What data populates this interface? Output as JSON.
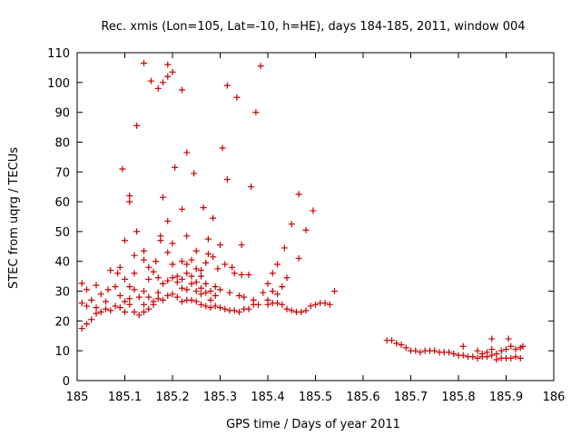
{
  "chart_data": {
    "type": "scatter",
    "title": "Rec. xmis (Lon=105, Lat=-10, h=HE), days 184-185, 2011, window 004",
    "xlabel": "GPS time / Days of year 2011",
    "ylabel": "STEC from uqrg / TECUs",
    "xlim": [
      185,
      186
    ],
    "ylim": [
      0,
      110
    ],
    "xticks": [
      "185",
      "185.1",
      "185.2",
      "185.3",
      "185.4",
      "185.5",
      "185.6",
      "185.7",
      "185.8",
      "185.9",
      "186"
    ],
    "yticks": [
      "0",
      "10",
      "20",
      "30",
      "40",
      "50",
      "60",
      "70",
      "80",
      "90",
      "100",
      "110"
    ],
    "grid": false,
    "marker": "+",
    "marker_color": "#cc0000",
    "series": [
      {
        "name": "STEC",
        "points": [
          [
            185.01,
            17.5
          ],
          [
            185.01,
            26.0
          ],
          [
            185.01,
            32.6
          ],
          [
            185.02,
            19.0
          ],
          [
            185.02,
            25.0
          ],
          [
            185.02,
            30.5
          ],
          [
            185.03,
            20.5
          ],
          [
            185.03,
            27.0
          ],
          [
            185.04,
            22.5
          ],
          [
            185.04,
            24.5
          ],
          [
            185.04,
            32.0
          ],
          [
            185.05,
            23.0
          ],
          [
            185.05,
            29.0
          ],
          [
            185.06,
            24.0
          ],
          [
            185.06,
            26.5
          ],
          [
            185.065,
            30.5
          ],
          [
            185.07,
            23.5
          ],
          [
            185.07,
            37.0
          ],
          [
            185.08,
            25.0
          ],
          [
            185.08,
            31.5
          ],
          [
            185.085,
            36.0
          ],
          [
            185.09,
            24.5
          ],
          [
            185.09,
            28.5
          ],
          [
            185.09,
            38.0
          ],
          [
            185.095,
            71.0
          ],
          [
            185.1,
            23.0
          ],
          [
            185.1,
            26.5
          ],
          [
            185.1,
            34.0
          ],
          [
            185.1,
            47.0
          ],
          [
            185.11,
            25.5
          ],
          [
            185.11,
            27.5
          ],
          [
            185.11,
            31.5
          ],
          [
            185.11,
            60.0
          ],
          [
            185.11,
            62.0
          ],
          [
            185.12,
            23.0
          ],
          [
            185.12,
            30.5
          ],
          [
            185.12,
            36.0
          ],
          [
            185.12,
            42.0
          ],
          [
            185.125,
            50.0
          ],
          [
            185.125,
            85.5
          ],
          [
            185.13,
            22.0
          ],
          [
            185.13,
            28.0
          ],
          [
            185.14,
            23.0
          ],
          [
            185.14,
            25.5
          ],
          [
            185.14,
            30.0
          ],
          [
            185.14,
            40.5
          ],
          [
            185.14,
            43.5
          ],
          [
            185.14,
            106.5
          ],
          [
            185.15,
            24.0
          ],
          [
            185.15,
            28.0
          ],
          [
            185.15,
            34.0
          ],
          [
            185.15,
            38.0
          ],
          [
            185.155,
            100.5
          ],
          [
            185.16,
            25.5
          ],
          [
            185.16,
            26.5
          ],
          [
            185.16,
            36.5
          ],
          [
            185.165,
            40.0
          ],
          [
            185.17,
            27.5
          ],
          [
            185.17,
            29.5
          ],
          [
            185.17,
            34.5
          ],
          [
            185.17,
            98.0
          ],
          [
            185.175,
            47.0
          ],
          [
            185.175,
            48.5
          ],
          [
            185.18,
            27.0
          ],
          [
            185.18,
            32.5
          ],
          [
            185.18,
            61.5
          ],
          [
            185.18,
            100.0
          ],
          [
            185.19,
            28.5
          ],
          [
            185.19,
            33.5
          ],
          [
            185.19,
            43.0
          ],
          [
            185.19,
            53.5
          ],
          [
            185.19,
            102.0
          ],
          [
            185.19,
            106.0
          ],
          [
            185.2,
            29.0
          ],
          [
            185.2,
            34.5
          ],
          [
            185.2,
            39.0
          ],
          [
            185.2,
            46.0
          ],
          [
            185.2,
            103.5
          ],
          [
            185.205,
            71.5
          ],
          [
            185.21,
            28.0
          ],
          [
            185.21,
            33.0
          ],
          [
            185.21,
            35.0
          ],
          [
            185.22,
            26.5
          ],
          [
            185.22,
            31.0
          ],
          [
            185.22,
            34.0
          ],
          [
            185.22,
            40.0
          ],
          [
            185.22,
            57.5
          ],
          [
            185.22,
            97.5
          ],
          [
            185.23,
            27.0
          ],
          [
            185.23,
            30.5
          ],
          [
            185.23,
            36.0
          ],
          [
            185.23,
            39.0
          ],
          [
            185.23,
            48.5
          ],
          [
            185.23,
            76.5
          ],
          [
            185.24,
            27.0
          ],
          [
            185.24,
            32.5
          ],
          [
            185.24,
            35.0
          ],
          [
            185.24,
            40.5
          ],
          [
            185.245,
            69.5
          ],
          [
            185.25,
            26.5
          ],
          [
            185.25,
            30.0
          ],
          [
            185.25,
            33.0
          ],
          [
            185.25,
            37.5
          ],
          [
            185.25,
            43.5
          ],
          [
            185.26,
            25.5
          ],
          [
            185.26,
            29.0
          ],
          [
            185.26,
            31.0
          ],
          [
            185.26,
            35.0
          ],
          [
            185.26,
            37.0
          ],
          [
            185.265,
            58.0
          ],
          [
            185.27,
            25.0
          ],
          [
            185.27,
            29.5
          ],
          [
            185.27,
            32.5
          ],
          [
            185.27,
            39.5
          ],
          [
            185.275,
            42.5
          ],
          [
            185.275,
            47.5
          ],
          [
            185.28,
            24.5
          ],
          [
            185.28,
            27.0
          ],
          [
            185.28,
            30.0
          ],
          [
            185.285,
            41.5
          ],
          [
            185.285,
            54.5
          ],
          [
            185.29,
            25.0
          ],
          [
            185.29,
            28.5
          ],
          [
            185.29,
            31.5
          ],
          [
            185.295,
            37.5
          ],
          [
            185.3,
            24.5
          ],
          [
            185.3,
            30.5
          ],
          [
            185.3,
            45.5
          ],
          [
            185.305,
            78.0
          ],
          [
            185.31,
            24.0
          ],
          [
            185.31,
            39.0
          ],
          [
            185.315,
            67.5
          ],
          [
            185.315,
            99.0
          ],
          [
            185.32,
            23.5
          ],
          [
            185.32,
            29.5
          ],
          [
            185.325,
            38.0
          ],
          [
            185.33,
            23.5
          ],
          [
            185.33,
            36.0
          ],
          [
            185.335,
            95.0
          ],
          [
            185.34,
            23.0
          ],
          [
            185.34,
            28.5
          ],
          [
            185.345,
            35.5
          ],
          [
            185.345,
            45.5
          ],
          [
            185.35,
            24.0
          ],
          [
            185.35,
            28.0
          ],
          [
            185.36,
            24.0
          ],
          [
            185.36,
            35.5
          ],
          [
            185.365,
            65.0
          ],
          [
            185.37,
            25.5
          ],
          [
            185.37,
            27.0
          ],
          [
            185.375,
            90.0
          ],
          [
            185.38,
            25.5
          ],
          [
            185.385,
            105.5
          ],
          [
            185.39,
            29.5
          ],
          [
            185.4,
            25.5
          ],
          [
            185.4,
            27.0
          ],
          [
            185.4,
            32.5
          ],
          [
            185.41,
            26.0
          ],
          [
            185.41,
            30.0
          ],
          [
            185.41,
            36.0
          ],
          [
            185.42,
            26.0
          ],
          [
            185.42,
            29.0
          ],
          [
            185.42,
            39.0
          ],
          [
            185.43,
            25.5
          ],
          [
            185.43,
            31.5
          ],
          [
            185.435,
            44.5
          ],
          [
            185.44,
            24.0
          ],
          [
            185.44,
            34.5
          ],
          [
            185.45,
            23.5
          ],
          [
            185.45,
            52.5
          ],
          [
            185.46,
            23.0
          ],
          [
            185.465,
            41.0
          ],
          [
            185.465,
            62.5
          ],
          [
            185.47,
            23.0
          ],
          [
            185.48,
            23.5
          ],
          [
            185.48,
            50.5
          ],
          [
            185.49,
            25.0
          ],
          [
            185.495,
            57.0
          ],
          [
            185.5,
            25.5
          ],
          [
            185.51,
            26.0
          ],
          [
            185.52,
            26.0
          ],
          [
            185.53,
            25.5
          ],
          [
            185.54,
            30.0
          ],
          [
            185.65,
            13.5
          ],
          [
            185.66,
            13.5
          ],
          [
            185.67,
            12.5
          ],
          [
            185.68,
            12.0
          ],
          [
            185.69,
            11.0
          ],
          [
            185.7,
            10.0
          ],
          [
            185.71,
            10.0
          ],
          [
            185.72,
            9.5
          ],
          [
            185.73,
            10.0
          ],
          [
            185.74,
            10.0
          ],
          [
            185.75,
            10.0
          ],
          [
            185.76,
            9.5
          ],
          [
            185.77,
            9.5
          ],
          [
            185.78,
            9.5
          ],
          [
            185.79,
            9.0
          ],
          [
            185.8,
            8.5
          ],
          [
            185.81,
            8.5
          ],
          [
            185.81,
            11.5
          ],
          [
            185.82,
            8.0
          ],
          [
            185.83,
            8.0
          ],
          [
            185.84,
            7.5
          ],
          [
            185.84,
            10.0
          ],
          [
            185.85,
            8.0
          ],
          [
            185.85,
            9.0
          ],
          [
            185.86,
            8.0
          ],
          [
            185.86,
            9.5
          ],
          [
            185.87,
            8.5
          ],
          [
            185.87,
            10.5
          ],
          [
            185.87,
            14.0
          ],
          [
            185.88,
            7.0
          ],
          [
            185.88,
            9.0
          ],
          [
            185.89,
            7.5
          ],
          [
            185.89,
            10.0
          ],
          [
            185.9,
            7.5
          ],
          [
            185.9,
            10.5
          ],
          [
            185.905,
            14.0
          ],
          [
            185.91,
            7.5
          ],
          [
            185.91,
            11.5
          ],
          [
            185.92,
            8.0
          ],
          [
            185.92,
            10.5
          ],
          [
            185.93,
            7.5
          ],
          [
            185.93,
            11.0
          ],
          [
            185.935,
            11.5
          ]
        ]
      }
    ]
  }
}
